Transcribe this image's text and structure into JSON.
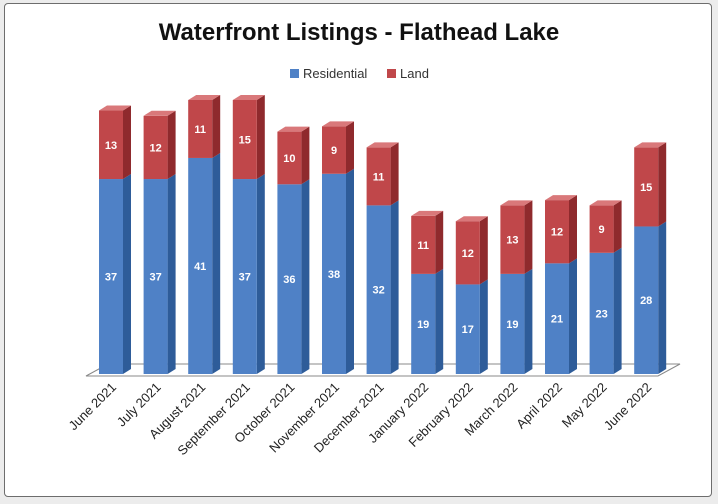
{
  "chart_data": {
    "type": "bar",
    "stacked": true,
    "title": "Waterfront Listings - Flathead Lake",
    "legend": [
      "Residential",
      "Land"
    ],
    "legend_position": "top",
    "categories": [
      "June 2021",
      "July 2021",
      "August 2021",
      "September 2021",
      "October 2021",
      "November 2021",
      "December 2021",
      "January 2022",
      "February 2022",
      "March 2022",
      "April 2022",
      "May 2022",
      "June 2022"
    ],
    "series": [
      {
        "name": "Residential",
        "values": [
          37,
          37,
          41,
          37,
          36,
          38,
          32,
          19,
          17,
          19,
          21,
          23,
          28
        ]
      },
      {
        "name": "Land",
        "values": [
          13,
          12,
          11,
          15,
          10,
          9,
          11,
          11,
          12,
          13,
          12,
          9,
          15
        ]
      }
    ],
    "ylim": [
      0,
      52
    ],
    "colors": {
      "residential": "#4f81c6",
      "residential_side": "#2e5c99",
      "residential_top": "#7fa6dc",
      "land": "#c0474a",
      "land_side": "#8f2a2d",
      "land_top": "#d9787a"
    }
  }
}
